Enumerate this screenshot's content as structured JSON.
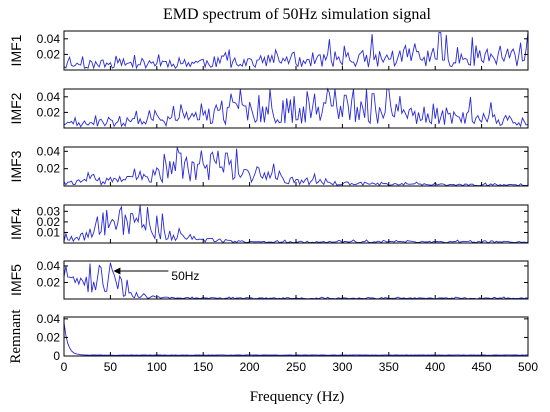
{
  "chart_data": {
    "type": "line",
    "title": "EMD spectrum of 50Hz simulation signal",
    "xlabel": "Frequency (Hz)",
    "xlim": [
      0,
      500
    ],
    "x_ticks": [
      "0",
      "50",
      "100",
      "150",
      "200",
      "250",
      "300",
      "350",
      "400",
      "450",
      "500"
    ],
    "line_color": "#2a2ad8",
    "panels": [
      {
        "name": "IMF1",
        "ylim": [
          0,
          0.05
        ],
        "y_ticks": [
          0.02,
          0.04
        ],
        "y_tick_labels": [
          "0.02",
          "0.04"
        ],
        "envelope": [
          [
            0,
            0.007
          ],
          [
            100,
            0.009
          ],
          [
            200,
            0.011
          ],
          [
            300,
            0.014
          ],
          [
            400,
            0.017
          ],
          [
            500,
            0.016
          ]
        ],
        "noise_amp": 0.014,
        "peaks": [
          [
            302,
            0.031
          ],
          [
            378,
            0.034
          ],
          [
            405,
            0.048
          ],
          [
            412,
            0.045
          ],
          [
            440,
            0.042
          ],
          [
            470,
            0.031
          ],
          [
            492,
            0.035
          ]
        ],
        "seed": 11
      },
      {
        "name": "IMF2",
        "ylim": [
          0,
          0.05
        ],
        "y_ticks": [
          0.02,
          0.04
        ],
        "y_tick_labels": [
          "0.02",
          "0.04"
        ],
        "envelope": [
          [
            0,
            0.005
          ],
          [
            100,
            0.008
          ],
          [
            150,
            0.015
          ],
          [
            200,
            0.022
          ],
          [
            300,
            0.022
          ],
          [
            400,
            0.016
          ],
          [
            500,
            0.008
          ]
        ],
        "noise_amp": 0.022,
        "peaks": [
          [
            180,
            0.044
          ],
          [
            210,
            0.042
          ],
          [
            248,
            0.041
          ],
          [
            270,
            0.044
          ],
          [
            303,
            0.042
          ],
          [
            333,
            0.044
          ],
          [
            362,
            0.041
          ]
        ],
        "seed": 23
      },
      {
        "name": "IMF3",
        "ylim": [
          0,
          0.045
        ],
        "y_ticks": [
          0.02,
          0.04
        ],
        "y_tick_labels": [
          "0.02",
          "0.04"
        ],
        "envelope": [
          [
            0,
            0.004
          ],
          [
            80,
            0.007
          ],
          [
            110,
            0.016
          ],
          [
            150,
            0.022
          ],
          [
            190,
            0.016
          ],
          [
            230,
            0.009
          ],
          [
            280,
            0.004
          ],
          [
            320,
            0.002
          ],
          [
            500,
            0.001
          ]
        ],
        "noise_amp": 0.022,
        "peaks": [
          [
            108,
            0.037
          ],
          [
            125,
            0.038
          ],
          [
            148,
            0.041
          ],
          [
            160,
            0.039
          ],
          [
            175,
            0.038
          ],
          [
            186,
            0.043
          ]
        ],
        "seed": 37
      },
      {
        "name": "IMF4",
        "ylim": [
          0,
          0.036
        ],
        "y_ticks": [
          0.01,
          0.02,
          0.03
        ],
        "y_tick_labels": [
          "0.01",
          "0.02",
          "0.03"
        ],
        "envelope": [
          [
            0,
            0.004
          ],
          [
            25,
            0.008
          ],
          [
            50,
            0.014
          ],
          [
            75,
            0.017
          ],
          [
            95,
            0.012
          ],
          [
            120,
            0.006
          ],
          [
            150,
            0.003
          ],
          [
            200,
            0.001
          ],
          [
            500,
            0.001
          ]
        ],
        "noise_amp": 0.02,
        "peaks": [
          [
            42,
            0.029
          ],
          [
            60,
            0.031
          ],
          [
            72,
            0.028
          ],
          [
            90,
            0.034
          ],
          [
            100,
            0.026
          ]
        ],
        "seed": 53
      },
      {
        "name": "IMF5",
        "ylim": [
          0,
          0.046
        ],
        "y_ticks": [
          0.02,
          0.04
        ],
        "y_tick_labels": [
          "0.02",
          "0.04"
        ],
        "envelope": [
          [
            0,
            0.02
          ],
          [
            20,
            0.022
          ],
          [
            40,
            0.024
          ],
          [
            55,
            0.02
          ],
          [
            70,
            0.008
          ],
          [
            90,
            0.003
          ],
          [
            120,
            0.001
          ],
          [
            500,
            0.0008
          ]
        ],
        "noise_amp": 0.018,
        "peaks": [
          [
            2,
            0.04
          ],
          [
            28,
            0.043
          ],
          [
            40,
            0.038
          ],
          [
            50,
            0.044
          ]
        ],
        "seed": 71
      },
      {
        "name": "Remnant",
        "ylim": [
          0,
          0.042
        ],
        "y_ticks": [
          0,
          0.02,
          0.04
        ],
        "y_tick_labels": [
          "0",
          "0.02",
          "0.04"
        ],
        "decay": {
          "a": 0.035,
          "tau": 4,
          "floor": 0.0008
        },
        "seed": 97
      }
    ],
    "annotation": {
      "text": "50Hz",
      "panel": "IMF5",
      "arrow_to_x": 50
    }
  }
}
